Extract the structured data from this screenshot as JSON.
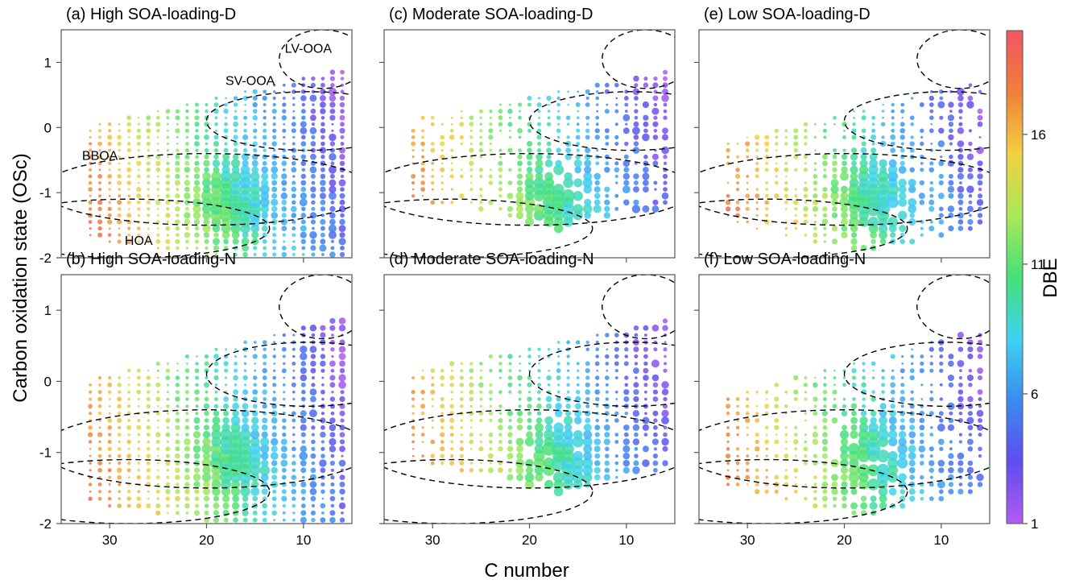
{
  "figure": {
    "ylabel": "Carbon oxidation state (OSc)",
    "xlabel": "C number",
    "colorbar_label": "DBE"
  },
  "chart_data": {
    "type": "scatter",
    "x_reversed": true,
    "xlim": [
      35,
      5
    ],
    "ylim": [
      -2,
      1.5
    ],
    "xticks": [
      30,
      20,
      10
    ],
    "yticks": [
      -2,
      -1,
      0,
      1
    ],
    "color_variable": "DBE",
    "colorbar": {
      "range": [
        1,
        20
      ],
      "ticks": [
        1,
        6,
        11,
        16
      ],
      "colors": [
        "#b25bf0",
        "#5f4cf0",
        "#3a8cf0",
        "#3fd2f0",
        "#46e07a",
        "#a9e85a",
        "#f2d040",
        "#f0803a",
        "#f25464"
      ]
    },
    "regions": [
      {
        "name": "LV-OOA",
        "cx": 8,
        "cy": 1.05,
        "rx": 4.5,
        "ry": 0.45
      },
      {
        "name": "SV-OOA",
        "cx": 9.5,
        "cy": 0.1,
        "rx": 10.5,
        "ry": 0.45
      },
      {
        "name": "BBOA",
        "cx": 20,
        "cy": -0.95,
        "rx": 17,
        "ry": 0.55
      },
      {
        "name": "HOA",
        "cx": 28,
        "cy": -1.55,
        "rx": 14.5,
        "ry": 0.45
      }
    ],
    "panels": [
      {
        "title": "(a) High SOA-loading-D",
        "labels": [
          "LV-OOA",
          "SV-OOA",
          "BBOA",
          "HOA"
        ],
        "scheme": "high",
        "point_density": 1.0
      },
      {
        "title": "(b) High SOA-loading-N",
        "labels": [],
        "scheme": "high",
        "point_density": 1.0
      },
      {
        "title": "(c) Moderate SOA-loading-D",
        "labels": [],
        "scheme": "moderate",
        "point_density": 0.8
      },
      {
        "title": "(d) Moderate SOA-loading-N",
        "labels": [],
        "scheme": "moderate",
        "point_density": 0.9
      },
      {
        "title": "(e) Low SOA-loading-D",
        "labels": [],
        "scheme": "low",
        "point_density": 0.8
      },
      {
        "title": "(f) Low SOA-loading-N",
        "labels": [],
        "scheme": "low",
        "point_density": 0.8
      }
    ]
  }
}
